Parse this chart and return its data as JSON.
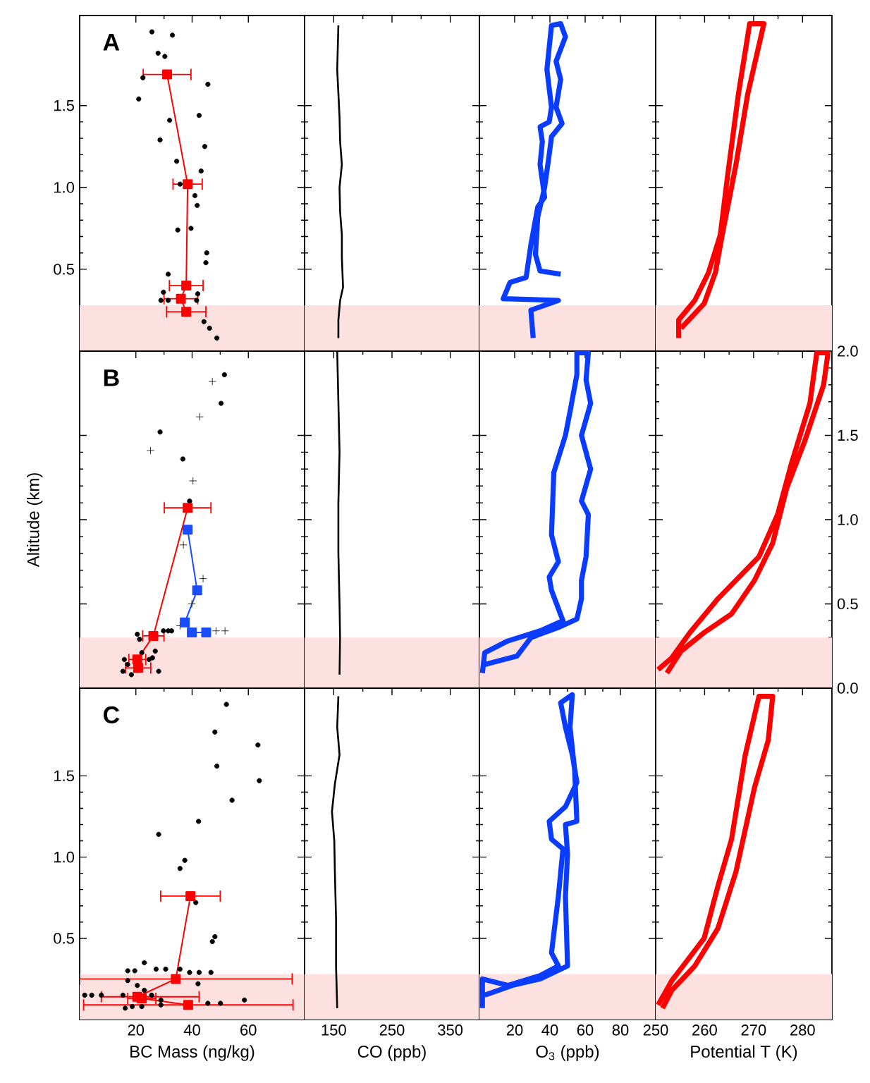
{
  "chart_data": [
    {
      "type": "scatter",
      "annotations": [
        "A"
      ],
      "xlim": [
        0,
        80
      ],
      "xticks": [
        20,
        40,
        60
      ],
      "ylim": [
        0,
        2.05
      ],
      "yticks": [
        0.5,
        {
          "value": 1,
          "label": "1.0"
        },
        1.5
      ],
      "tick_labels": "y",
      "bands": [
        {
          "axis": "y",
          "from": 0,
          "to": 0.28,
          "color": "#fde0e0"
        }
      ],
      "series": [
        {
          "type": "scatter",
          "marker": "circle",
          "color": "#000000",
          "x": [
            25.7,
            33.0,
            27.9,
            30.3,
            22.5,
            45.6,
            21.0,
            42.5,
            32.0,
            44.5,
            28.6,
            34.5,
            43.2,
            35.7,
            41.0,
            41.8,
            34.9,
            39.6,
            45.2,
            44.9,
            31.5,
            29.8,
            28.9,
            31.5,
            41.6,
            42.0,
            44.2,
            46.2,
            48.8
          ],
          "values": [
            1.95,
            1.93,
            1.82,
            1.8,
            1.67,
            1.63,
            1.54,
            1.44,
            1.41,
            1.25,
            1.29,
            1.16,
            1.1,
            1.02,
            0.95,
            0.89,
            0.74,
            0.75,
            0.6,
            0.54,
            0.47,
            0.36,
            0.31,
            0.31,
            0.31,
            0.35,
            0.18,
            0.14,
            0.08
          ]
        },
        {
          "type": "line",
          "marker": "square",
          "color": "#ff0000",
          "x": [
            31.1,
            38.4,
            37.9,
            36.0,
            37.9
          ],
          "values": [
            1.69,
            1.02,
            0.4,
            0.32,
            0.24
          ],
          "xerrors": [
            8.5,
            5.2,
            6,
            6,
            7
          ]
        }
      ]
    },
    {
      "type": "line",
      "xlim": [
        100,
        400
      ],
      "xticks": [
        150,
        250,
        350
      ],
      "ylim": [
        0,
        2.05
      ],
      "yticks": [
        0.5,
        1,
        1.5
      ],
      "tick_labels": false,
      "bands": [
        {
          "axis": "y",
          "from": 0,
          "to": 0.28,
          "color": "#fde0e0"
        }
      ],
      "series": [
        {
          "color": "#000000",
          "x": [
            158,
            156,
            160,
            161,
            164,
            160,
            161,
            164,
            164,
            166,
            161,
            158,
            158
          ],
          "values": [
            1.99,
            1.72,
            1.43,
            1.28,
            1.14,
            1.0,
            0.85,
            0.71,
            0.57,
            0.39,
            0.31,
            0.19,
            0.08
          ]
        }
      ]
    },
    {
      "type": "line",
      "xlim": [
        0,
        100
      ],
      "xticks": [
        20,
        40,
        60,
        80
      ],
      "ylim": [
        0,
        2.05
      ],
      "yticks": [
        0.5,
        1,
        1.5
      ],
      "tick_labels": false,
      "bands": [
        {
          "axis": "y",
          "from": 0,
          "to": 0.28,
          "color": "#fde0e0"
        }
      ],
      "series": [
        {
          "color": "#0a3cff",
          "x": [
            30.5,
            29.2,
            44.8,
            13.5,
            17.4,
            26.5,
            29.2,
            33.1,
            37.0,
            34.4,
            35.7,
            34.4,
            39.6,
            40.9,
            38.3,
            40.9,
            46.1,
            48.8,
            43.5,
            46.1,
            43.5,
            46.9,
            40.9,
            39.6,
            37.0,
            33.1,
            31.8,
            34.4,
            46.1
          ],
          "values": [
            0.08,
            0.25,
            0.31,
            0.32,
            0.42,
            0.45,
            0.65,
            0.88,
            0.94,
            1.14,
            1.28,
            1.37,
            1.4,
            1.49,
            1.72,
            1.99,
            2.0,
            1.92,
            1.77,
            1.66,
            1.49,
            1.39,
            1.31,
            1.2,
            1.0,
            0.82,
            0.59,
            0.49,
            0.47
          ]
        }
      ]
    },
    {
      "type": "line",
      "xlim": [
        250,
        286
      ],
      "xticks": [
        250,
        260,
        270,
        280
      ],
      "ylim": [
        0,
        2.05
      ],
      "yticks": [
        0.5,
        1,
        1.5
      ],
      "tick_labels": false,
      "bands": [
        {
          "axis": "y",
          "from": 0,
          "to": 0.28,
          "color": "#fde0e0"
        }
      ],
      "series": [
        {
          "color": "#ff0000",
          "x": [
            254.7,
            254.7,
            258.0,
            260.8,
            263.2,
            264.6,
            266.9,
            269.2,
            272.1,
            268.8,
            266.4,
            263.6,
            262.2,
            259.9,
            255.2
          ],
          "values": [
            0.08,
            0.19,
            0.31,
            0.48,
            0.71,
            1.05,
            1.57,
            2.0,
            2.0,
            1.57,
            1.14,
            0.71,
            0.48,
            0.29,
            0.14
          ]
        }
      ]
    },
    {
      "type": "scatter",
      "annotations": [
        "B"
      ],
      "ylabel": "Altitude (km)",
      "xlim": [
        0,
        80
      ],
      "xticks": [
        20,
        40,
        60
      ],
      "ylim": [
        0,
        2.0
      ],
      "yticks": [
        0.5,
        1,
        1.5
      ],
      "tick_labels": false,
      "bands": [
        {
          "axis": "y",
          "from": 0,
          "to": 0.3,
          "color": "#fde0e0"
        }
      ],
      "series": [
        {
          "type": "scatter",
          "marker": "circle",
          "color": "#000000",
          "x": [
            51.5,
            50.3,
            28.6,
            36.7,
            39.1,
            20.5,
            21.3,
            29.8,
            31.5,
            32.7,
            26.9,
            25.9,
            15.9,
            17.1,
            15.4,
            22.1,
            24.7,
            28.1,
            18.4
          ],
          "values": [
            1.86,
            1.69,
            1.52,
            1.36,
            1.11,
            0.32,
            0.29,
            0.34,
            0.34,
            0.34,
            0.22,
            0.18,
            0.17,
            0.14,
            0.1,
            0.21,
            0.17,
            0.1,
            0.08
          ]
        },
        {
          "type": "scatter",
          "marker": "cross",
          "color": "#000000",
          "x": [
            47.2,
            42.7,
            25.2,
            40.3,
            36.9,
            43.9,
            39.9,
            35.7,
            48.5,
            51.7
          ],
          "values": [
            1.82,
            1.61,
            1.41,
            1.23,
            0.85,
            0.65,
            0.5,
            0.37,
            0.34,
            0.34
          ]
        },
        {
          "type": "line",
          "marker": "square",
          "color": "#1a4cff",
          "x": [
            38.4,
            41.8,
            37.4,
            39.9,
            45.0
          ],
          "values": [
            0.94,
            0.58,
            0.39,
            0.33,
            0.33
          ]
        },
        {
          "type": "line",
          "marker": "square",
          "color": "#ff0000",
          "x": [
            38.4,
            26.2,
            20.5,
            20.8
          ],
          "values": [
            1.07,
            0.31,
            0.17,
            0.12
          ],
          "xerrors": [
            8.3,
            3.8,
            3,
            4.5
          ]
        }
      ]
    },
    {
      "type": "line",
      "xlim": [
        100,
        400
      ],
      "xticks": [
        150,
        250,
        350
      ],
      "ylim": [
        0,
        2.0
      ],
      "yticks": [
        0.5,
        1,
        1.5
      ],
      "tick_labels": false,
      "bands": [
        {
          "axis": "y",
          "from": 0,
          "to": 0.3,
          "color": "#fde0e0"
        }
      ],
      "series": [
        {
          "color": "#000000",
          "x": [
            156,
            158,
            160,
            158,
            158,
            160,
            161,
            160
          ],
          "values": [
            2.0,
            1.7,
            1.4,
            1.1,
            0.8,
            0.5,
            0.3,
            0.08
          ]
        }
      ]
    },
    {
      "type": "line",
      "xlim": [
        0,
        100
      ],
      "xticks": [
        20,
        40,
        60,
        80
      ],
      "ylim": [
        0,
        2.0
      ],
      "yticks": [
        0.5,
        1,
        1.5
      ],
      "tick_labels": false,
      "bands": [
        {
          "axis": "y",
          "from": 0,
          "to": 0.3,
          "color": "#fde0e0"
        }
      ],
      "series": [
        {
          "color": "#0a3cff",
          "x": [
            1.7,
            3.0,
            16.1,
            34.4,
            47.4,
            40.9,
            39.6,
            44.8,
            40.9,
            42.2,
            48.8,
            51.4,
            55.3,
            55.3,
            61.8,
            60.5,
            63.1,
            57.9,
            63.1,
            57.9,
            61.8,
            60.5,
            57.9,
            57.9,
            55.3,
            44.8,
            29.2,
            21.3,
            3.0
          ],
          "values": [
            0.09,
            0.21,
            0.28,
            0.34,
            0.4,
            0.58,
            0.66,
            0.75,
            0.91,
            1.28,
            1.5,
            1.64,
            1.86,
            1.99,
            1.99,
            1.83,
            1.69,
            1.5,
            1.3,
            1.11,
            1.03,
            0.78,
            0.64,
            0.53,
            0.41,
            0.36,
            0.3,
            0.19,
            0.14
          ]
        }
      ]
    },
    {
      "type": "line",
      "xlim": [
        250,
        286
      ],
      "xticks": [
        250,
        260,
        270,
        280
      ],
      "ylim": [
        0,
        2.0
      ],
      "yticks": [
        {
          "value": 0,
          "label": "0.0"
        },
        0.5,
        {
          "value": 1,
          "label": "1.0"
        },
        1.5,
        {
          "value": 2,
          "label": "2.0"
        }
      ],
      "tick_labels": "y",
      "bands": [
        {
          "axis": "y",
          "from": 0,
          "to": 0.3,
          "color": "#fde0e0"
        }
      ],
      "series": [
        {
          "color": "#ff0000",
          "x": [
            250.5,
            253.3,
            257.0,
            262.7,
            271.1,
            274.9,
            277.7,
            281.5,
            282.9,
            285.2,
            284.3,
            280.5,
            276.8,
            273.9,
            270.2,
            265.5,
            259.9,
            255.2,
            252.3
          ],
          "values": [
            0.11,
            0.18,
            0.33,
            0.53,
            0.78,
            1.03,
            1.33,
            1.69,
            1.99,
            1.99,
            1.8,
            1.47,
            1.19,
            0.86,
            0.64,
            0.44,
            0.33,
            0.22,
            0.09
          ]
        }
      ]
    },
    {
      "type": "scatter",
      "annotations": [
        "C"
      ],
      "xlabel": "BC Mass (ng/kg)",
      "xlim": [
        0,
        80
      ],
      "xticks": [
        20,
        40,
        60
      ],
      "ylim": [
        0,
        2.04
      ],
      "yticks": [
        0.5,
        {
          "value": 1,
          "label": "1.0"
        },
        1.5
      ],
      "bands": [
        {
          "axis": "y",
          "from": 0,
          "to": 0.28,
          "color": "#fde0e0"
        }
      ],
      "series": [
        {
          "type": "scatter",
          "marker": "circle",
          "color": "#000000",
          "x": [
            52.2,
            48.1,
            63.4,
            48.8,
            63.9,
            54.2,
            42.3,
            28.1,
            37.4,
            35.7,
            41.3,
            48.1,
            47.2,
            17.1,
            19.6,
            23.0,
            27.2,
            30.6,
            35.7,
            39.1,
            42.5,
            46.7,
            42.1,
            17.1,
            20.5,
            23.0,
            15.4,
            25.6,
            28.9,
            1.8,
            4.3,
            7.7,
            18.7,
            22.1,
            28.9,
            45.6,
            50.1,
            58.6,
            16.2
          ],
          "values": [
            1.94,
            1.77,
            1.69,
            1.56,
            1.47,
            1.35,
            1.22,
            1.14,
            0.98,
            0.93,
            0.72,
            0.51,
            0.48,
            0.3,
            0.3,
            0.35,
            0.31,
            0.31,
            0.31,
            0.29,
            0.29,
            0.29,
            0.22,
            0.24,
            0.21,
            0.18,
            0.15,
            0.15,
            0.12,
            0.15,
            0.15,
            0.15,
            0.08,
            0.08,
            0.09,
            0.1,
            0.1,
            0.12,
            0.07
          ]
        },
        {
          "type": "line",
          "marker": "square",
          "color": "#ff0000",
          "x": [
            39.4,
            34.2,
            20.5,
            22.1,
            38.6
          ],
          "values": [
            0.76,
            0.25,
            0.14,
            0.13,
            0.09
          ],
          "xerrors": [
            10.6,
            [
              0,
              75.6
            ],
            [
              7.7,
              42.5
            ],
            5,
            [
              1.4,
              75.9
            ]
          ]
        }
      ]
    },
    {
      "type": "line",
      "xlabel": "CO (ppb)",
      "xlim": [
        100,
        400
      ],
      "xticks": [
        150,
        250,
        350
      ],
      "ylim": [
        0,
        2.04
      ],
      "yticks": [
        0.5,
        1,
        1.5
      ],
      "tick_labels": "x",
      "bands": [
        {
          "axis": "y",
          "from": 0,
          "to": 0.28,
          "color": "#fde0e0"
        }
      ],
      "series": [
        {
          "color": "#000000",
          "x": [
            158,
            156,
            160,
            152,
            147,
            151,
            152,
            154,
            154,
            156
          ],
          "values": [
            1.99,
            1.8,
            1.63,
            1.45,
            1.28,
            1.1,
            0.91,
            0.62,
            0.33,
            0.07
          ]
        }
      ]
    },
    {
      "type": "line",
      "xlabel": "O$_{3}$ (ppb)",
      "xlim": [
        0,
        100
      ],
      "xticks": [
        20,
        40,
        60,
        80
      ],
      "ylim": [
        0,
        2.04
      ],
      "yticks": [
        0.5,
        1,
        1.5
      ],
      "tick_labels": "x",
      "bands": [
        {
          "axis": "y",
          "from": 0,
          "to": 0.28,
          "color": "#fde0e0"
        }
      ],
      "series": [
        {
          "color": "#0a3cff",
          "x": [
            1.7,
            1.7,
            16.1,
            34.4,
            44.8,
            40.9,
            44.8,
            47.4,
            40.9,
            39.6,
            48.8,
            55.3,
            52.7,
            48.8,
            46.1,
            52.7,
            51.4,
            54.0,
            55.3,
            48.8,
            50.0,
            48.8,
            50.0,
            34.4,
            18.7,
            3.0
          ],
          "values": [
            0.07,
            0.25,
            0.21,
            0.27,
            0.33,
            0.41,
            0.76,
            1.05,
            1.11,
            1.22,
            1.31,
            1.46,
            1.63,
            1.8,
            1.95,
            2.0,
            1.8,
            1.54,
            1.22,
            1.2,
            1.02,
            0.76,
            0.33,
            0.25,
            0.21,
            0.15
          ]
        }
      ]
    },
    {
      "type": "line",
      "xlabel": "Potential T (K)",
      "xlim": [
        250,
        286
      ],
      "xticks": [
        250,
        260,
        270,
        280
      ],
      "ylim": [
        0,
        2.04
      ],
      "yticks": [
        0.5,
        1,
        1.5
      ],
      "tick_labels": "x",
      "bands": [
        {
          "axis": "y",
          "from": 0,
          "to": 0.28,
          "color": "#fde0e0"
        }
      ],
      "series": [
        {
          "color": "#ff0000",
          "x": [
            250.5,
            253.3,
            256.1,
            259.9,
            262.7,
            265.5,
            268.3,
            271.1,
            273.9,
            273.0,
            270.2,
            266.4,
            262.7,
            258.0,
            253.3,
            251.4
          ],
          "values": [
            0.09,
            0.24,
            0.35,
            0.5,
            0.82,
            1.11,
            1.63,
            1.99,
            1.99,
            1.72,
            1.43,
            0.91,
            0.56,
            0.33,
            0.18,
            0.07
          ]
        }
      ]
    }
  ]
}
